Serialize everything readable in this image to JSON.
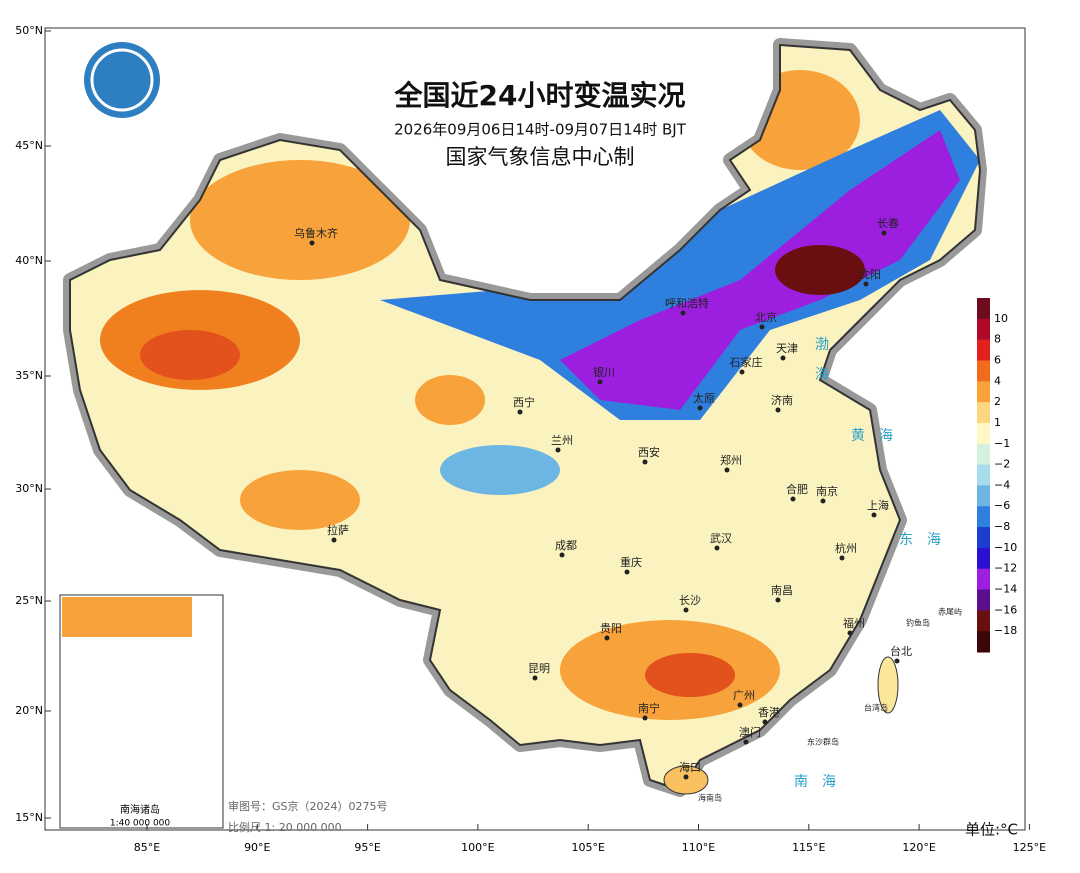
{
  "header": {
    "title": "全国近24小时变温实况",
    "subtitle": "2026年09月06日14时-09月07日14时 BJT",
    "agency": "国家气象信息中心制"
  },
  "lat_ticks": [
    "50°N",
    "45°N",
    "40°N",
    "35°N",
    "30°N",
    "25°N",
    "20°N",
    "15°N"
  ],
  "lon_ticks": [
    "85°E",
    "90°E",
    "95°E",
    "100°E",
    "105°E",
    "110°E",
    "115°E",
    "120°E",
    "125°E"
  ],
  "legend": {
    "labels": [
      "10",
      "8",
      "6",
      "4",
      "2",
      "1",
      "−1",
      "−2",
      "−4",
      "−6",
      "−8",
      "−10",
      "−12",
      "−14",
      "−16",
      "−18"
    ],
    "colors": [
      "#6e0b1e",
      "#b00a2a",
      "#e3211c",
      "#f26a1b",
      "#f9a23a",
      "#fdd67f",
      "#fdf8c4",
      "#d3f1dc",
      "#a7dcec",
      "#6db5e3",
      "#2f80de",
      "#1a3ed0",
      "#2a10d0",
      "#9c1fe0",
      "#5b0f8c",
      "#6a0f0f",
      "#3a0606"
    ],
    "unit": "单位:°C"
  },
  "cities": [
    "乌鲁木齐",
    "西宁",
    "兰州",
    "拉萨",
    "成都",
    "重庆",
    "贵阳",
    "昆明",
    "南宁",
    "广州",
    "香港",
    "澳门",
    "海口",
    "长沙",
    "南昌",
    "福州",
    "台北",
    "杭州",
    "上海",
    "南京",
    "合肥",
    "武汉",
    "郑州",
    "西安",
    "太原",
    "石家庄",
    "济南",
    "天津",
    "北京",
    "银川",
    "呼和浩特",
    "沈阳",
    "长春"
  ],
  "seas": [
    "渤",
    "海",
    "黄　海",
    "东　海",
    "南　海"
  ],
  "islands": [
    "钓鱼岛",
    "赤尾屿",
    "东沙群岛",
    "海南岛",
    "台湾岛"
  ],
  "footer": {
    "review": "审图号：GS京（2024）0275号",
    "scale": "比例尺 1: 20 000 000"
  },
  "inset": {
    "title": "南海诸岛",
    "scale": "1:40 000 000"
  }
}
